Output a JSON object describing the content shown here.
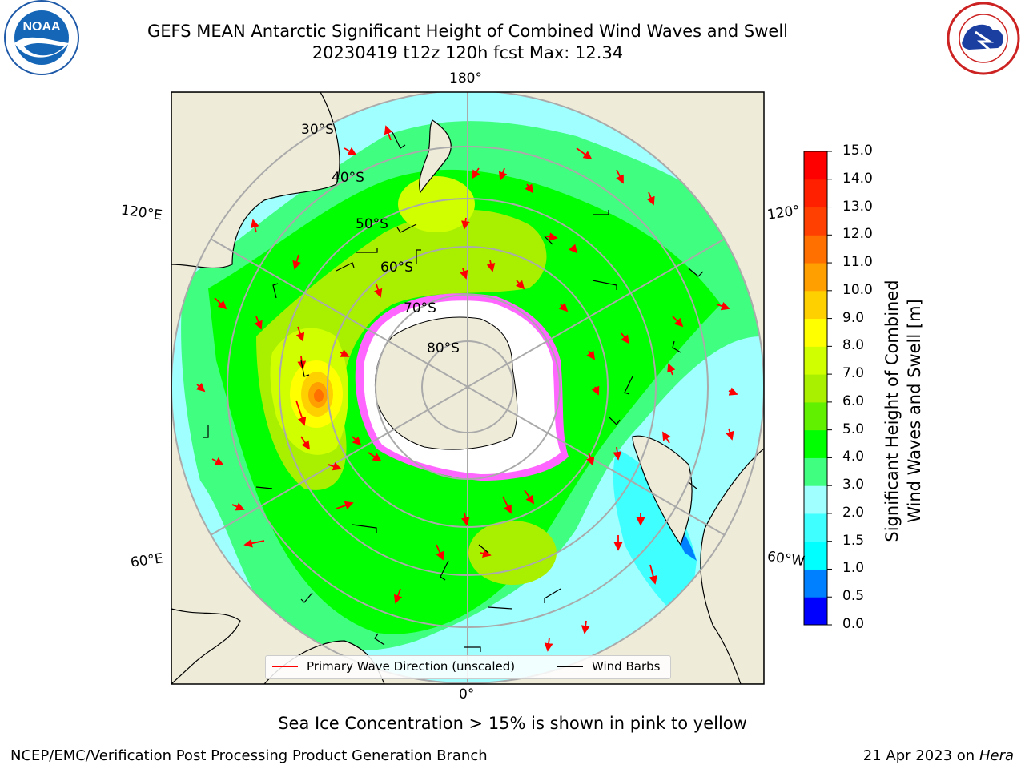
{
  "header": {
    "title_line1": "GEFS MEAN Antarctic Significant Height of Combined Wind Waves and Swell",
    "title_line2": "20230419 t12z 120h fcst   Max: 12.34"
  },
  "map": {
    "longitude_labels": {
      "top": "180°",
      "upper_left": "120°E",
      "upper_right": "120°",
      "lower_left": "60°E",
      "lower_right": "60°W",
      "bottom": "0°"
    },
    "latitude_labels": [
      "30°S",
      "40°S",
      "50°S",
      "60°S",
      "70°S",
      "80°S"
    ],
    "colors": {
      "land": "#eeebd9",
      "ice_shelf": "#ffffff",
      "sea_ice": "#ff33ff",
      "coast": "#000000",
      "grid": "#aaaaaa",
      "arrow": "#ff0000"
    }
  },
  "legend": {
    "wave_label": "Primary Wave Direction (unscaled)",
    "wave_color": "#ff0000",
    "wind_label": "Wind Barbs",
    "wind_color": "#000000"
  },
  "colorbar": {
    "label_line1": "Significant Height of Combined",
    "label_line2": "Wind Waves and Swell [m]",
    "ticks": [
      "0.0",
      "0.5",
      "1.0",
      "1.5",
      "2.0",
      "3.0",
      "4.0",
      "5.0",
      "6.0",
      "7.0",
      "8.0",
      "9.0",
      "10.0",
      "11.0",
      "12.0",
      "13.0",
      "14.0",
      "15.0"
    ],
    "colors": [
      "#0000ff",
      "#0080ff",
      "#00ffff",
      "#40ffff",
      "#a0ffff",
      "#40ff80",
      "#00ff00",
      "#60f000",
      "#a8f000",
      "#d0ff00",
      "#ffff00",
      "#ffd000",
      "#ffa000",
      "#ff7000",
      "#ff4000",
      "#ff2000",
      "#ff0000"
    ]
  },
  "footer": {
    "ice_note": "Sea Ice Concentration > 15% is shown in pink to yellow",
    "left": "NCEP/EMC/Verification Post Processing Product Generation Branch",
    "date": "21 Apr 2023 on ",
    "host": "Hera"
  }
}
